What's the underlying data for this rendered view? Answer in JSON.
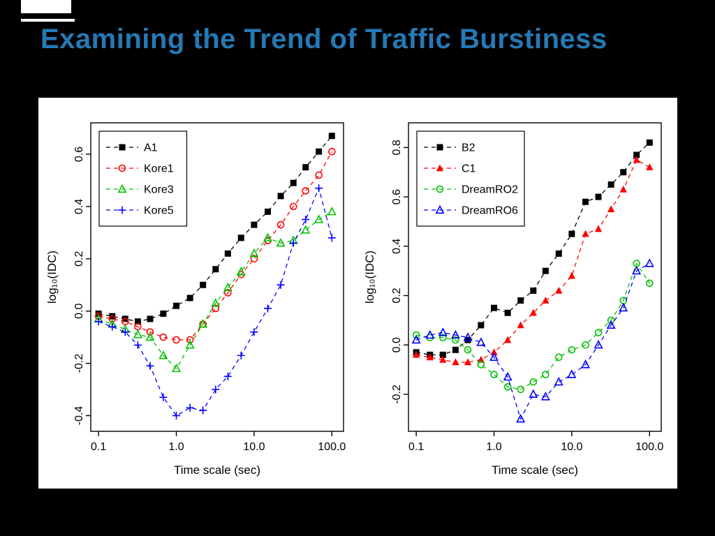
{
  "slide": {
    "title": "Examining the Trend of Traffic Burstiness",
    "title_color": "#2579b5",
    "background_color": "#000000",
    "panel_color": "#ffffff"
  },
  "chart_data": [
    {
      "type": "line",
      "title": "",
      "xlabel": "Time scale (sec)",
      "ylabel": "log₁₀(IDC)",
      "x_scale": "log",
      "grid": false,
      "legend_position": "top-left",
      "xlog_range": [
        -1.1,
        2.15
      ],
      "ylim": [
        -0.46,
        0.72
      ],
      "xticks": [
        0.1,
        1.0,
        10.0,
        100.0
      ],
      "xtick_labels": [
        "0.1",
        "1.0",
        "10.0",
        "100.0"
      ],
      "yticks": [
        -0.4,
        -0.2,
        0.0,
        0.2,
        0.4,
        0.6
      ],
      "ytick_labels": [
        "-0.4",
        "-0.2",
        "0.0",
        "0.2",
        "0.4",
        "0.6"
      ],
      "x": [
        0.1,
        0.15,
        0.22,
        0.32,
        0.46,
        0.68,
        1.0,
        1.5,
        2.2,
        3.2,
        4.6,
        6.8,
        10,
        15,
        22,
        32,
        46,
        68,
        100
      ],
      "series": [
        {
          "name": "A1",
          "color": "#000000",
          "marker": "square-filled",
          "line": "dashed",
          "values": [
            -0.01,
            -0.02,
            -0.03,
            -0.04,
            -0.03,
            -0.01,
            0.02,
            0.05,
            0.1,
            0.16,
            0.22,
            0.28,
            0.33,
            0.38,
            0.44,
            0.49,
            0.55,
            0.61,
            0.67
          ]
        },
        {
          "name": "Kore1",
          "color": "#ff0000",
          "marker": "circle-open",
          "line": "dashed",
          "values": [
            -0.02,
            -0.03,
            -0.04,
            -0.06,
            -0.08,
            -0.1,
            -0.11,
            -0.11,
            -0.05,
            0.01,
            0.07,
            0.14,
            0.2,
            0.27,
            0.33,
            0.4,
            0.46,
            0.52,
            0.61
          ]
        },
        {
          "name": "Kore3",
          "color": "#00c000",
          "marker": "triangle-open",
          "line": "dashed",
          "values": [
            -0.03,
            -0.05,
            -0.07,
            -0.09,
            -0.1,
            -0.17,
            -0.22,
            -0.13,
            -0.05,
            0.03,
            0.09,
            0.15,
            0.22,
            0.28,
            0.26,
            0.27,
            0.31,
            0.35,
            0.38
          ]
        },
        {
          "name": "Kore5",
          "color": "#0000ff",
          "marker": "plus",
          "line": "dashed",
          "values": [
            -0.04,
            -0.06,
            -0.08,
            -0.13,
            -0.21,
            -0.33,
            -0.4,
            -0.37,
            -0.38,
            -0.3,
            -0.25,
            -0.17,
            -0.08,
            0.01,
            0.1,
            0.26,
            0.35,
            0.47,
            0.28
          ]
        }
      ]
    },
    {
      "type": "line",
      "title": "",
      "xlabel": "Time scale (sec)",
      "ylabel": "log₁₀(IDC)",
      "x_scale": "log",
      "grid": false,
      "legend_position": "top-left",
      "xlog_range": [
        -1.1,
        2.15
      ],
      "ylim": [
        -0.35,
        0.9
      ],
      "xticks": [
        0.1,
        1.0,
        10.0,
        100.0
      ],
      "xtick_labels": [
        "0.1",
        "1.0",
        "10.0",
        "100.0"
      ],
      "yticks": [
        -0.2,
        0.0,
        0.2,
        0.4,
        0.6,
        0.8
      ],
      "ytick_labels": [
        "-0.2",
        "0.0",
        "0.2",
        "0.4",
        "0.6",
        "0.8"
      ],
      "x": [
        0.1,
        0.15,
        0.22,
        0.32,
        0.46,
        0.68,
        1.0,
        1.5,
        2.2,
        3.2,
        4.6,
        6.8,
        10,
        15,
        22,
        32,
        46,
        68,
        100
      ],
      "series": [
        {
          "name": "B2",
          "color": "#000000",
          "marker": "square-filled",
          "line": "dashed",
          "values": [
            -0.03,
            -0.04,
            -0.04,
            -0.02,
            0.02,
            0.08,
            0.15,
            0.13,
            0.18,
            0.22,
            0.3,
            0.37,
            0.45,
            0.58,
            0.6,
            0.65,
            0.7,
            0.77,
            0.82
          ]
        },
        {
          "name": "C1",
          "color": "#ff0000",
          "marker": "triangle-filled",
          "line": "dashed",
          "values": [
            -0.04,
            -0.05,
            -0.06,
            -0.07,
            -0.07,
            -0.06,
            -0.03,
            0.02,
            0.08,
            0.13,
            0.18,
            0.22,
            0.28,
            0.45,
            0.47,
            0.55,
            0.63,
            0.75,
            0.72
          ]
        },
        {
          "name": "DreamRO2",
          "color": "#00c000",
          "marker": "circle-open",
          "line": "dashed",
          "values": [
            0.04,
            0.03,
            0.03,
            0.02,
            -0.02,
            -0.08,
            -0.12,
            -0.17,
            -0.18,
            -0.15,
            -0.12,
            -0.05,
            -0.02,
            0.0,
            0.05,
            0.1,
            0.18,
            0.33,
            0.25
          ]
        },
        {
          "name": "DreamRO6",
          "color": "#0000ff",
          "marker": "triangle-open",
          "line": "dashed",
          "values": [
            0.02,
            0.04,
            0.05,
            0.04,
            0.03,
            0.01,
            -0.05,
            -0.13,
            -0.3,
            -0.2,
            -0.21,
            -0.15,
            -0.12,
            -0.08,
            0.0,
            0.08,
            0.15,
            0.3,
            0.33
          ]
        }
      ]
    }
  ]
}
